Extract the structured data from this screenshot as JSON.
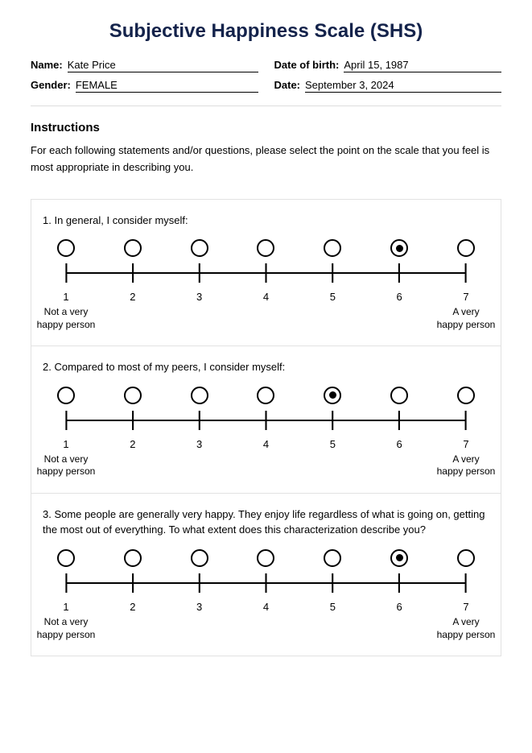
{
  "title": "Subjective Happiness Scale (SHS)",
  "title_color": "#14234b",
  "fields": {
    "name_label": "Name:",
    "name_value": "Kate Price",
    "dob_label": "Date of birth:",
    "dob_value": "April 15, 1987",
    "gender_label": "Gender:",
    "gender_value": "FEMALE",
    "date_label": "Date:",
    "date_value": "September 3, 2024"
  },
  "instructions": {
    "heading": "Instructions",
    "text": "For each following statements and/or questions, please select the point on the scale that you feel is most appropriate in describing you."
  },
  "scale": {
    "points": 7,
    "numbers": [
      "1",
      "2",
      "3",
      "4",
      "5",
      "6",
      "7"
    ],
    "anchor_low": "Not a very\nhappy person",
    "anchor_high": "A very\nhappy person",
    "line_color": "#000000",
    "circle_border": "#000000",
    "background": "#ffffff"
  },
  "questions": [
    {
      "num": "1.",
      "text": "In general, I consider myself:",
      "selected": 6
    },
    {
      "num": "2.",
      "text": "Compared to most of my peers, I consider myself:",
      "selected": 5
    },
    {
      "num": "3.",
      "text": "Some people are generally very happy. They enjoy life regardless of what is going on, getting the most out of everything. To what extent does this characterization describe you?",
      "selected": 6
    }
  ]
}
